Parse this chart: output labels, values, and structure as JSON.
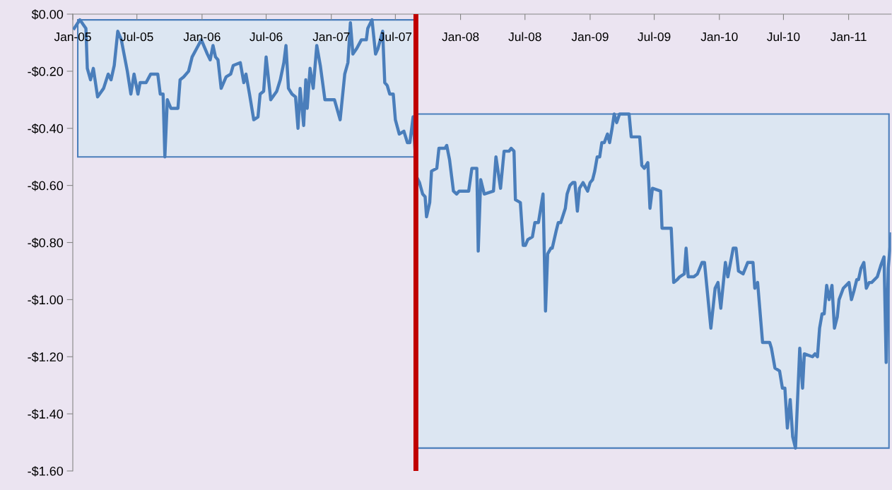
{
  "chart_data": {
    "type": "line",
    "x": [
      "2005-01-05",
      "2005-01-21",
      "2005-02-07",
      "2005-02-11",
      "2005-02-20",
      "2005-02-28",
      "2005-03-12",
      "2005-03-29",
      "2005-04-11",
      "2005-04-19",
      "2005-04-28",
      "2005-05-08",
      "2005-05-18",
      "2005-06-04",
      "2005-06-14",
      "2005-06-23",
      "2005-07-04",
      "2005-07-10",
      "2005-07-27",
      "2005-08-09",
      "2005-08-29",
      "2005-09-05",
      "2005-09-13",
      "2005-09-18",
      "2005-09-25",
      "2005-10-05",
      "2005-10-15",
      "2005-10-25",
      "2005-10-31",
      "2005-11-10",
      "2005-11-24",
      "2005-12-04",
      "2005-12-17",
      "2005-12-30",
      "2006-01-16",
      "2006-01-24",
      "2006-02-01",
      "2006-02-08",
      "2006-02-15",
      "2006-02-24",
      "2006-03-10",
      "2006-03-23",
      "2006-03-30",
      "2006-04-19",
      "2006-04-29",
      "2006-05-05",
      "2006-05-15",
      "2006-05-27",
      "2006-06-08",
      "2006-06-14",
      "2006-06-24",
      "2006-07-01",
      "2006-07-14",
      "2006-07-31",
      "2006-08-10",
      "2006-08-20",
      "2006-08-26",
      "2006-09-02",
      "2006-09-12",
      "2006-09-22",
      "2006-09-29",
      "2006-10-05",
      "2006-10-15",
      "2006-10-21",
      "2006-10-25",
      "2006-11-02",
      "2006-11-11",
      "2006-11-21",
      "2006-12-01",
      "2006-12-14",
      "2006-12-27",
      "2007-01-10",
      "2007-01-26",
      "2007-02-08",
      "2007-02-17",
      "2007-02-24",
      "2007-03-03",
      "2007-03-14",
      "2007-03-27",
      "2007-04-10",
      "2007-04-14",
      "2007-04-26",
      "2007-05-06",
      "2007-05-13",
      "2007-05-26",
      "2007-06-01",
      "2007-06-08",
      "2007-06-15",
      "2007-06-25",
      "2007-07-01",
      "2007-07-12",
      "2007-07-25",
      "2007-08-04",
      "2007-08-11",
      "2007-08-20",
      "2007-08-30",
      "2007-09-07",
      "2007-09-16",
      "2007-09-23",
      "2007-09-27",
      "2007-10-06",
      "2007-10-11",
      "2007-10-26",
      "2007-11-01",
      "2007-11-18",
      "2007-11-23",
      "2007-12-01",
      "2007-12-12",
      "2007-12-21",
      "2007-12-28",
      "2008-01-24",
      "2008-02-02",
      "2008-02-09",
      "2008-02-16",
      "2008-02-20",
      "2008-02-27",
      "2008-03-08",
      "2008-04-03",
      "2008-04-10",
      "2008-04-23",
      "2008-05-03",
      "2008-05-17",
      "2008-05-23",
      "2008-05-31",
      "2008-06-04",
      "2008-06-18",
      "2008-06-26",
      "2008-07-02",
      "2008-07-09",
      "2008-07-22",
      "2008-07-29",
      "2008-08-08",
      "2008-08-21",
      "2008-08-28",
      "2008-09-03",
      "2008-09-12",
      "2008-09-16",
      "2008-09-27",
      "2008-10-03",
      "2008-10-10",
      "2008-10-23",
      "2008-10-28",
      "2008-11-05",
      "2008-11-13",
      "2008-11-19",
      "2008-11-26",
      "2008-12-02",
      "2008-12-12",
      "2008-12-25",
      "2009-01-01",
      "2009-01-08",
      "2009-01-14",
      "2009-01-21",
      "2009-01-28",
      "2009-02-03",
      "2009-02-10",
      "2009-02-19",
      "2009-02-25",
      "2009-03-04",
      "2009-03-10",
      "2009-03-17",
      "2009-03-25",
      "2009-04-21",
      "2009-04-27",
      "2009-05-21",
      "2009-05-27",
      "2009-06-03",
      "2009-06-13",
      "2009-06-19",
      "2009-06-26",
      "2009-07-19",
      "2009-07-23",
      "2009-08-18",
      "2009-08-25",
      "2009-09-04",
      "2009-09-11",
      "2009-09-24",
      "2009-09-29",
      "2009-10-05",
      "2009-10-21",
      "2009-10-31",
      "2009-11-13",
      "2009-11-20",
      "2009-12-08",
      "2009-12-20",
      "2009-12-28",
      "2010-01-05",
      "2010-01-18",
      "2010-01-25",
      "2010-02-09",
      "2010-02-17",
      "2010-02-24",
      "2010-03-09",
      "2010-03-22",
      "2010-04-06",
      "2010-04-11",
      "2010-04-19",
      "2010-05-03",
      "2010-05-23",
      "2010-05-28",
      "2010-06-07",
      "2010-06-20",
      "2010-06-28",
      "2010-07-05",
      "2010-07-12",
      "2010-07-20",
      "2010-07-27",
      "2010-08-04",
      "2010-08-16",
      "2010-08-24",
      "2010-08-29",
      "2010-09-21",
      "2010-09-28",
      "2010-10-05",
      "2010-10-11",
      "2010-10-18",
      "2010-10-24",
      "2010-10-31",
      "2010-11-07",
      "2010-11-15",
      "2010-11-22",
      "2010-11-30",
      "2010-12-05",
      "2010-12-17",
      "2011-01-02",
      "2011-01-09",
      "2011-01-16",
      "2011-01-24",
      "2011-01-29",
      "2011-02-05",
      "2011-02-13",
      "2011-02-20",
      "2011-02-28",
      "2011-03-07",
      "2011-03-23",
      "2011-04-02",
      "2011-04-11",
      "2011-04-17",
      "2011-04-23",
      "2011-05-01"
    ],
    "series": [
      {
        "color": "#4a7ebb",
        "values": [
          -0.05,
          -0.02,
          -0.05,
          -0.19,
          -0.23,
          -0.19,
          -0.29,
          -0.26,
          -0.21,
          -0.23,
          -0.18,
          -0.06,
          -0.09,
          -0.2,
          -0.28,
          -0.21,
          -0.28,
          -0.24,
          -0.24,
          -0.21,
          -0.21,
          -0.28,
          -0.28,
          -0.5,
          -0.3,
          -0.33,
          -0.33,
          -0.33,
          -0.23,
          -0.22,
          -0.2,
          -0.15,
          -0.12,
          -0.09,
          -0.14,
          -0.16,
          -0.11,
          -0.15,
          -0.16,
          -0.26,
          -0.22,
          -0.21,
          -0.18,
          -0.17,
          -0.24,
          -0.21,
          -0.28,
          -0.37,
          -0.36,
          -0.28,
          -0.27,
          -0.15,
          -0.3,
          -0.27,
          -0.23,
          -0.17,
          -0.11,
          -0.26,
          -0.28,
          -0.29,
          -0.4,
          -0.26,
          -0.39,
          -0.23,
          -0.33,
          -0.19,
          -0.26,
          -0.11,
          -0.18,
          -0.3,
          -0.3,
          -0.3,
          -0.37,
          -0.21,
          -0.17,
          -0.03,
          -0.14,
          -0.12,
          -0.09,
          -0.09,
          -0.05,
          -0.02,
          -0.14,
          -0.12,
          -0.06,
          -0.24,
          -0.25,
          -0.28,
          -0.28,
          -0.37,
          -0.42,
          -0.41,
          -0.45,
          -0.45,
          -0.36,
          -0.57,
          -0.59,
          -0.63,
          -0.64,
          -0.71,
          -0.66,
          -0.55,
          -0.54,
          -0.47,
          -0.47,
          -0.46,
          -0.51,
          -0.62,
          -0.63,
          -0.62,
          -0.62,
          -0.54,
          -0.54,
          -0.54,
          -0.83,
          -0.58,
          -0.63,
          -0.62,
          -0.5,
          -0.61,
          -0.48,
          -0.48,
          -0.47,
          -0.48,
          -0.65,
          -0.66,
          -0.81,
          -0.81,
          -0.79,
          -0.78,
          -0.73,
          -0.73,
          -0.63,
          -1.04,
          -0.84,
          -0.82,
          -0.82,
          -0.76,
          -0.73,
          -0.73,
          -0.68,
          -0.63,
          -0.6,
          -0.59,
          -0.59,
          -0.69,
          -0.61,
          -0.59,
          -0.62,
          -0.59,
          -0.58,
          -0.55,
          -0.5,
          -0.5,
          -0.45,
          -0.45,
          -0.42,
          -0.45,
          -0.4,
          -0.35,
          -0.38,
          -0.35,
          -0.35,
          -0.43,
          -0.43,
          -0.53,
          -0.54,
          -0.52,
          -0.68,
          -0.61,
          -0.62,
          -0.75,
          -0.75,
          -0.94,
          -0.93,
          -0.92,
          -0.91,
          -0.82,
          -0.92,
          -0.92,
          -0.91,
          -0.87,
          -0.87,
          -1.1,
          -0.96,
          -0.94,
          -1.03,
          -0.87,
          -0.92,
          -0.82,
          -0.82,
          -0.9,
          -0.91,
          -0.87,
          -0.87,
          -0.96,
          -0.94,
          -1.15,
          -1.15,
          -1.17,
          -1.24,
          -1.25,
          -1.31,
          -1.31,
          -1.45,
          -1.35,
          -1.48,
          -1.52,
          -1.17,
          -1.31,
          -1.19,
          -1.2,
          -1.19,
          -1.2,
          -1.1,
          -1.05,
          -1.05,
          -0.95,
          -1.0,
          -0.95,
          -1.1,
          -1.06,
          -1.0,
          -0.96,
          -0.94,
          -1.0,
          -0.97,
          -0.93,
          -0.93,
          -0.89,
          -0.87,
          -0.96,
          -0.94,
          -0.94,
          -0.92,
          -0.88,
          -0.85,
          -1.22,
          -0.89,
          -0.77
        ]
      }
    ],
    "xlim": [
      "2005-01-01",
      "2011-05-01"
    ],
    "xticks": [
      {
        "value": "2005-01-01",
        "label": "Jan-05"
      },
      {
        "value": "2005-07-01",
        "label": "Jul-05"
      },
      {
        "value": "2006-01-01",
        "label": "Jan-06"
      },
      {
        "value": "2006-07-01",
        "label": "Jul-06"
      },
      {
        "value": "2007-01-01",
        "label": "Jan-07"
      },
      {
        "value": "2007-07-01",
        "label": "Jul-07"
      },
      {
        "value": "2008-01-01",
        "label": "Jan-08"
      },
      {
        "value": "2008-07-01",
        "label": "Jul-08"
      },
      {
        "value": "2009-01-01",
        "label": "Jan-09"
      },
      {
        "value": "2009-07-01",
        "label": "Jul-09"
      },
      {
        "value": "2010-01-01",
        "label": "Jan-10"
      },
      {
        "value": "2010-07-01",
        "label": "Jul-10"
      },
      {
        "value": "2011-01-01",
        "label": "Jan-11"
      }
    ],
    "ylim": [
      -1.6,
      0
    ],
    "yticks": [
      {
        "value": 0,
        "label": "$0.00"
      },
      {
        "value": -0.2,
        "label": "-$0.20"
      },
      {
        "value": -0.4,
        "label": "-$0.40"
      },
      {
        "value": -0.6,
        "label": "-$0.60"
      },
      {
        "value": -0.8,
        "label": "-$0.80"
      },
      {
        "value": -1.0,
        "label": "-$1.00"
      },
      {
        "value": -1.2,
        "label": "-$1.20"
      },
      {
        "value": -1.4,
        "label": "-$1.40"
      },
      {
        "value": -1.6,
        "label": "-$1.60"
      }
    ],
    "ref_lines": [
      {
        "axis": "x",
        "value": "2007-08-28",
        "color": "#c00000"
      }
    ],
    "bands": [
      {
        "axis": "x",
        "from": "2005-01-15",
        "to": "2007-08-28",
        "color": "#dce6f2"
      },
      {
        "axis": "x",
        "from": "2007-08-28",
        "to": "2011-04-25",
        "color": "#dce6f2"
      }
    ],
    "grid": false,
    "marker": "none",
    "line_style": "solid"
  }
}
